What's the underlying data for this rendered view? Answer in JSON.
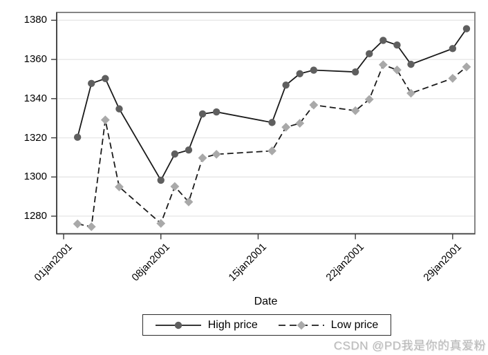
{
  "watermark": "CSDN @PD我是你的真爱粉",
  "chart_data": {
    "type": "line",
    "title": "",
    "xlabel": "Date",
    "ylabel": "",
    "grid": true,
    "legend_position": "bottom-center",
    "x_tick_labels": [
      "01jan2001",
      "08jan2001",
      "15jan2001",
      "22jan2001",
      "29jan2001"
    ],
    "x_tick_positions": [
      1,
      8,
      15,
      22,
      29
    ],
    "y_ticks": [
      1280,
      1300,
      1320,
      1340,
      1360,
      1380
    ],
    "xlim": [
      0.5,
      30.6
    ],
    "ylim": [
      1271,
      1384
    ],
    "x_unit": "day of January 2001 (trading days only)",
    "x": [
      2,
      3,
      4,
      5,
      8,
      9,
      10,
      11,
      12,
      16,
      17,
      18,
      19,
      22,
      23,
      24,
      25,
      26,
      29,
      30
    ],
    "series": [
      {
        "name": "High price",
        "marker": "circle",
        "line_style": "solid",
        "line_color": "#1a1a1a",
        "marker_color": "#5f5f5f",
        "values": [
          1320.28,
          1347.76,
          1350.24,
          1334.77,
          1298.35,
          1311.72,
          1313.76,
          1332.19,
          1333.21,
          1327.81,
          1346.92,
          1352.71,
          1354.55,
          1353.62,
          1362.9,
          1369.75,
          1367.35,
          1357.51,
          1365.54,
          1375.68
        ]
      },
      {
        "name": "Low price",
        "marker": "diamond",
        "line_style": "dashed",
        "line_color": "#1a1a1a",
        "marker_color": "#a9a9a9",
        "values": [
          1276.05,
          1274.62,
          1329.14,
          1294.95,
          1276.29,
          1295.14,
          1287.28,
          1309.72,
          1311.59,
          1313.33,
          1325.41,
          1327.41,
          1336.74,
          1333.84,
          1339.63,
          1357.28,
          1354.63,
          1342.75,
          1350.36,
          1356.2
        ]
      }
    ],
    "colors": {
      "grid": "#e7e7e7",
      "plot_border": "#858585",
      "axis": "#3a3a3a",
      "background": "#ffffff"
    }
  }
}
